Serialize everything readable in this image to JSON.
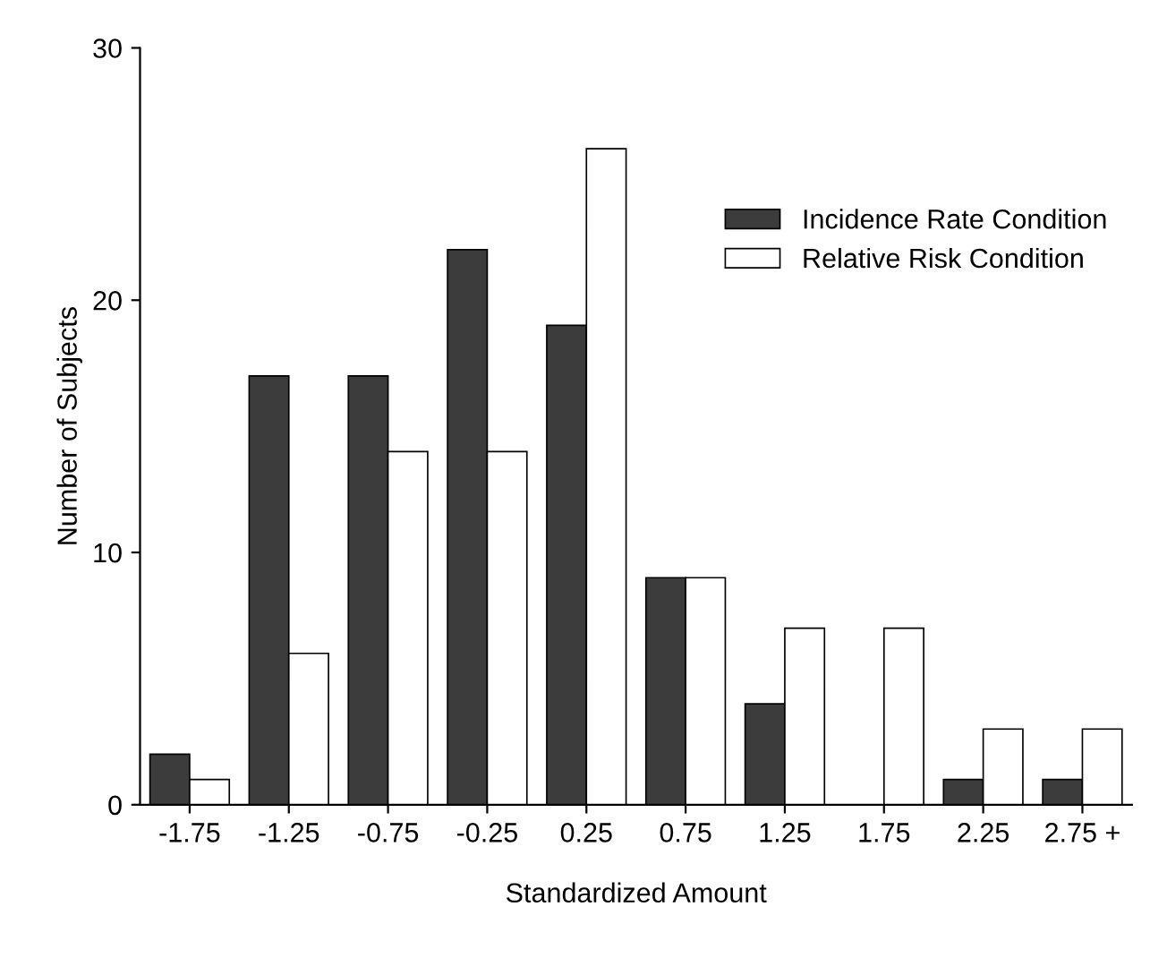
{
  "chart_data": {
    "type": "bar",
    "xlabel": "Standardized Amount",
    "ylabel": "Number of Subjects",
    "categories": [
      "-1.75",
      "-1.25",
      "-0.75",
      "-0.25",
      "0.25",
      "0.75",
      "1.25",
      "1.75",
      "2.25",
      "2.75 +"
    ],
    "series": [
      {
        "name": "Incidence Rate Condition",
        "color": "#3c3c3c",
        "values": [
          2,
          17,
          17,
          22,
          19,
          9,
          4,
          0,
          1,
          1
        ]
      },
      {
        "name": "Relative Risk Condition",
        "color": "#ffffff",
        "values": [
          1,
          6,
          14,
          14,
          26,
          9,
          7,
          7,
          3,
          3
        ]
      }
    ],
    "ylim": [
      0,
      30
    ],
    "yticks": [
      0,
      10,
      20,
      30
    ],
    "grid": false,
    "legend": "top right"
  }
}
